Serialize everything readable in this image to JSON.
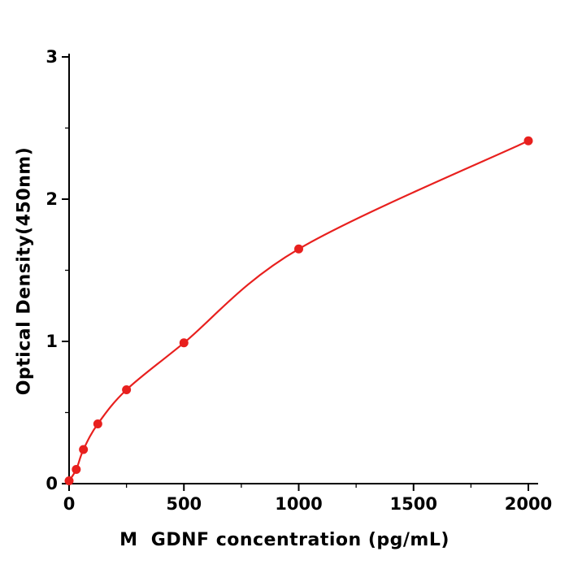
{
  "chart_data": {
    "type": "scatter",
    "title": "",
    "xlabel": "M  GDNF concentration (pg/mL)",
    "ylabel": "Optical Density(450nm)",
    "x": [
      0,
      31.25,
      62.5,
      125,
      250,
      500,
      1000,
      2000
    ],
    "y": [
      0.02,
      0.1,
      0.24,
      0.42,
      0.66,
      0.99,
      1.65,
      2.41
    ],
    "xlim": [
      0,
      2000
    ],
    "ylim": [
      0,
      3
    ],
    "x_ticks": [
      0,
      500,
      1000,
      1500,
      2000
    ],
    "y_ticks": [
      0,
      1,
      2,
      3
    ],
    "x_minor_ticks": [
      250,
      750,
      1250,
      1750
    ],
    "y_minor_ticks": [
      0.5,
      1.5,
      2.5
    ],
    "grid": false,
    "legend_position": "none",
    "marker_color": "#e8201e",
    "line_color": "#e8201e",
    "axis_color": "#000000",
    "fit": "smooth saturation curve through points"
  }
}
